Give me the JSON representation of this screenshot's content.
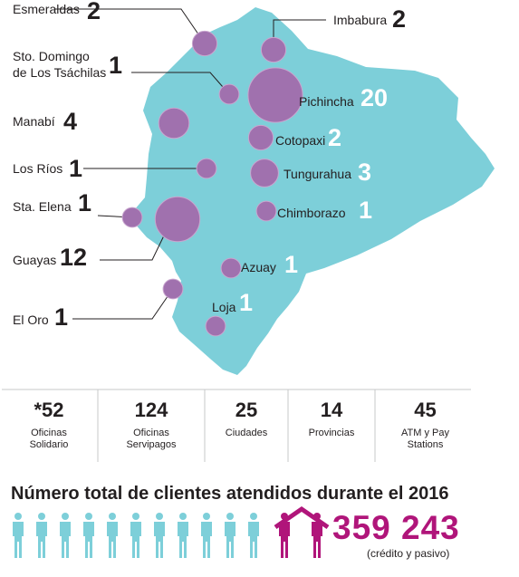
{
  "colors": {
    "map": "#7dcfd9",
    "bubble": "#a071ae",
    "bubble_stroke": "#c9a6cf",
    "text": "#231f20",
    "accent": "#b0157a",
    "people": "#7dcfd9",
    "separator": "#c7c8ca"
  },
  "provinces": [
    {
      "name": "Esmeraldas",
      "count": "2"
    },
    {
      "name": "Imbabura",
      "count": "2"
    },
    {
      "name_line1": "Sto. Domingo",
      "name_line2": "de Los Tsáchilas",
      "count": "1"
    },
    {
      "name": "Pichincha",
      "count": "20"
    },
    {
      "name": "Manabí",
      "count": "4"
    },
    {
      "name": "Cotopaxi",
      "count": "2"
    },
    {
      "name": "Los Ríos",
      "count": "1"
    },
    {
      "name": "Tungurahua",
      "count": "3"
    },
    {
      "name": "Sta. Elena",
      "count": "1"
    },
    {
      "name": "Chimborazo",
      "count": "1"
    },
    {
      "name": "Guayas",
      "count": "12"
    },
    {
      "name": "Azuay",
      "count": "1"
    },
    {
      "name": "El Oro",
      "count": "1"
    },
    {
      "name": "Loja",
      "count": "1"
    }
  ],
  "stats": [
    {
      "value": "*52",
      "label_line1": "Oficinas",
      "label_line2": "Solidario"
    },
    {
      "value": "124",
      "label_line1": "Oficinas",
      "label_line2": "Servipagos"
    },
    {
      "value": "25",
      "label_line1": "Ciudades",
      "label_line2": ""
    },
    {
      "value": "14",
      "label_line1": "Provincias",
      "label_line2": ""
    },
    {
      "value": "45",
      "label_line1": "ATM y Pay",
      "label_line2": "Stations"
    }
  ],
  "summary": {
    "heading": "Número total de clientes atendidos durante el 2016",
    "total": "359 243",
    "note": "(crédito y pasivo)"
  }
}
